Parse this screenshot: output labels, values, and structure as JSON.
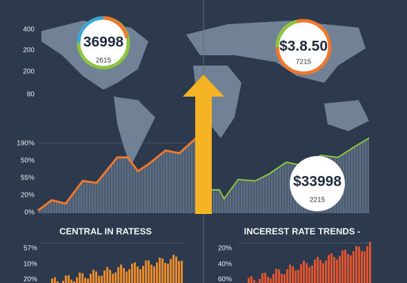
{
  "top_left": {
    "axis_labels": [
      "400",
      "200",
      "200",
      "80"
    ]
  },
  "badge_left": {
    "value": "36998",
    "sub": "2615"
  },
  "badge_right": {
    "value": "$3.8.50",
    "sub": "7215"
  },
  "middle_chart": {
    "axis_labels": [
      "190%",
      "50%",
      "55%",
      "20%",
      "0%"
    ]
  },
  "badge_middle": {
    "value": "$33998",
    "sub": "2215"
  },
  "bottom_left": {
    "title": "CENTRAL IN RATESS",
    "axis_labels": [
      "57%",
      "10%",
      "20%"
    ]
  },
  "bottom_right": {
    "title": "INCEREST RATE TRENDS -",
    "axis_labels": [
      "20%",
      "40%",
      "60%"
    ]
  }
}
